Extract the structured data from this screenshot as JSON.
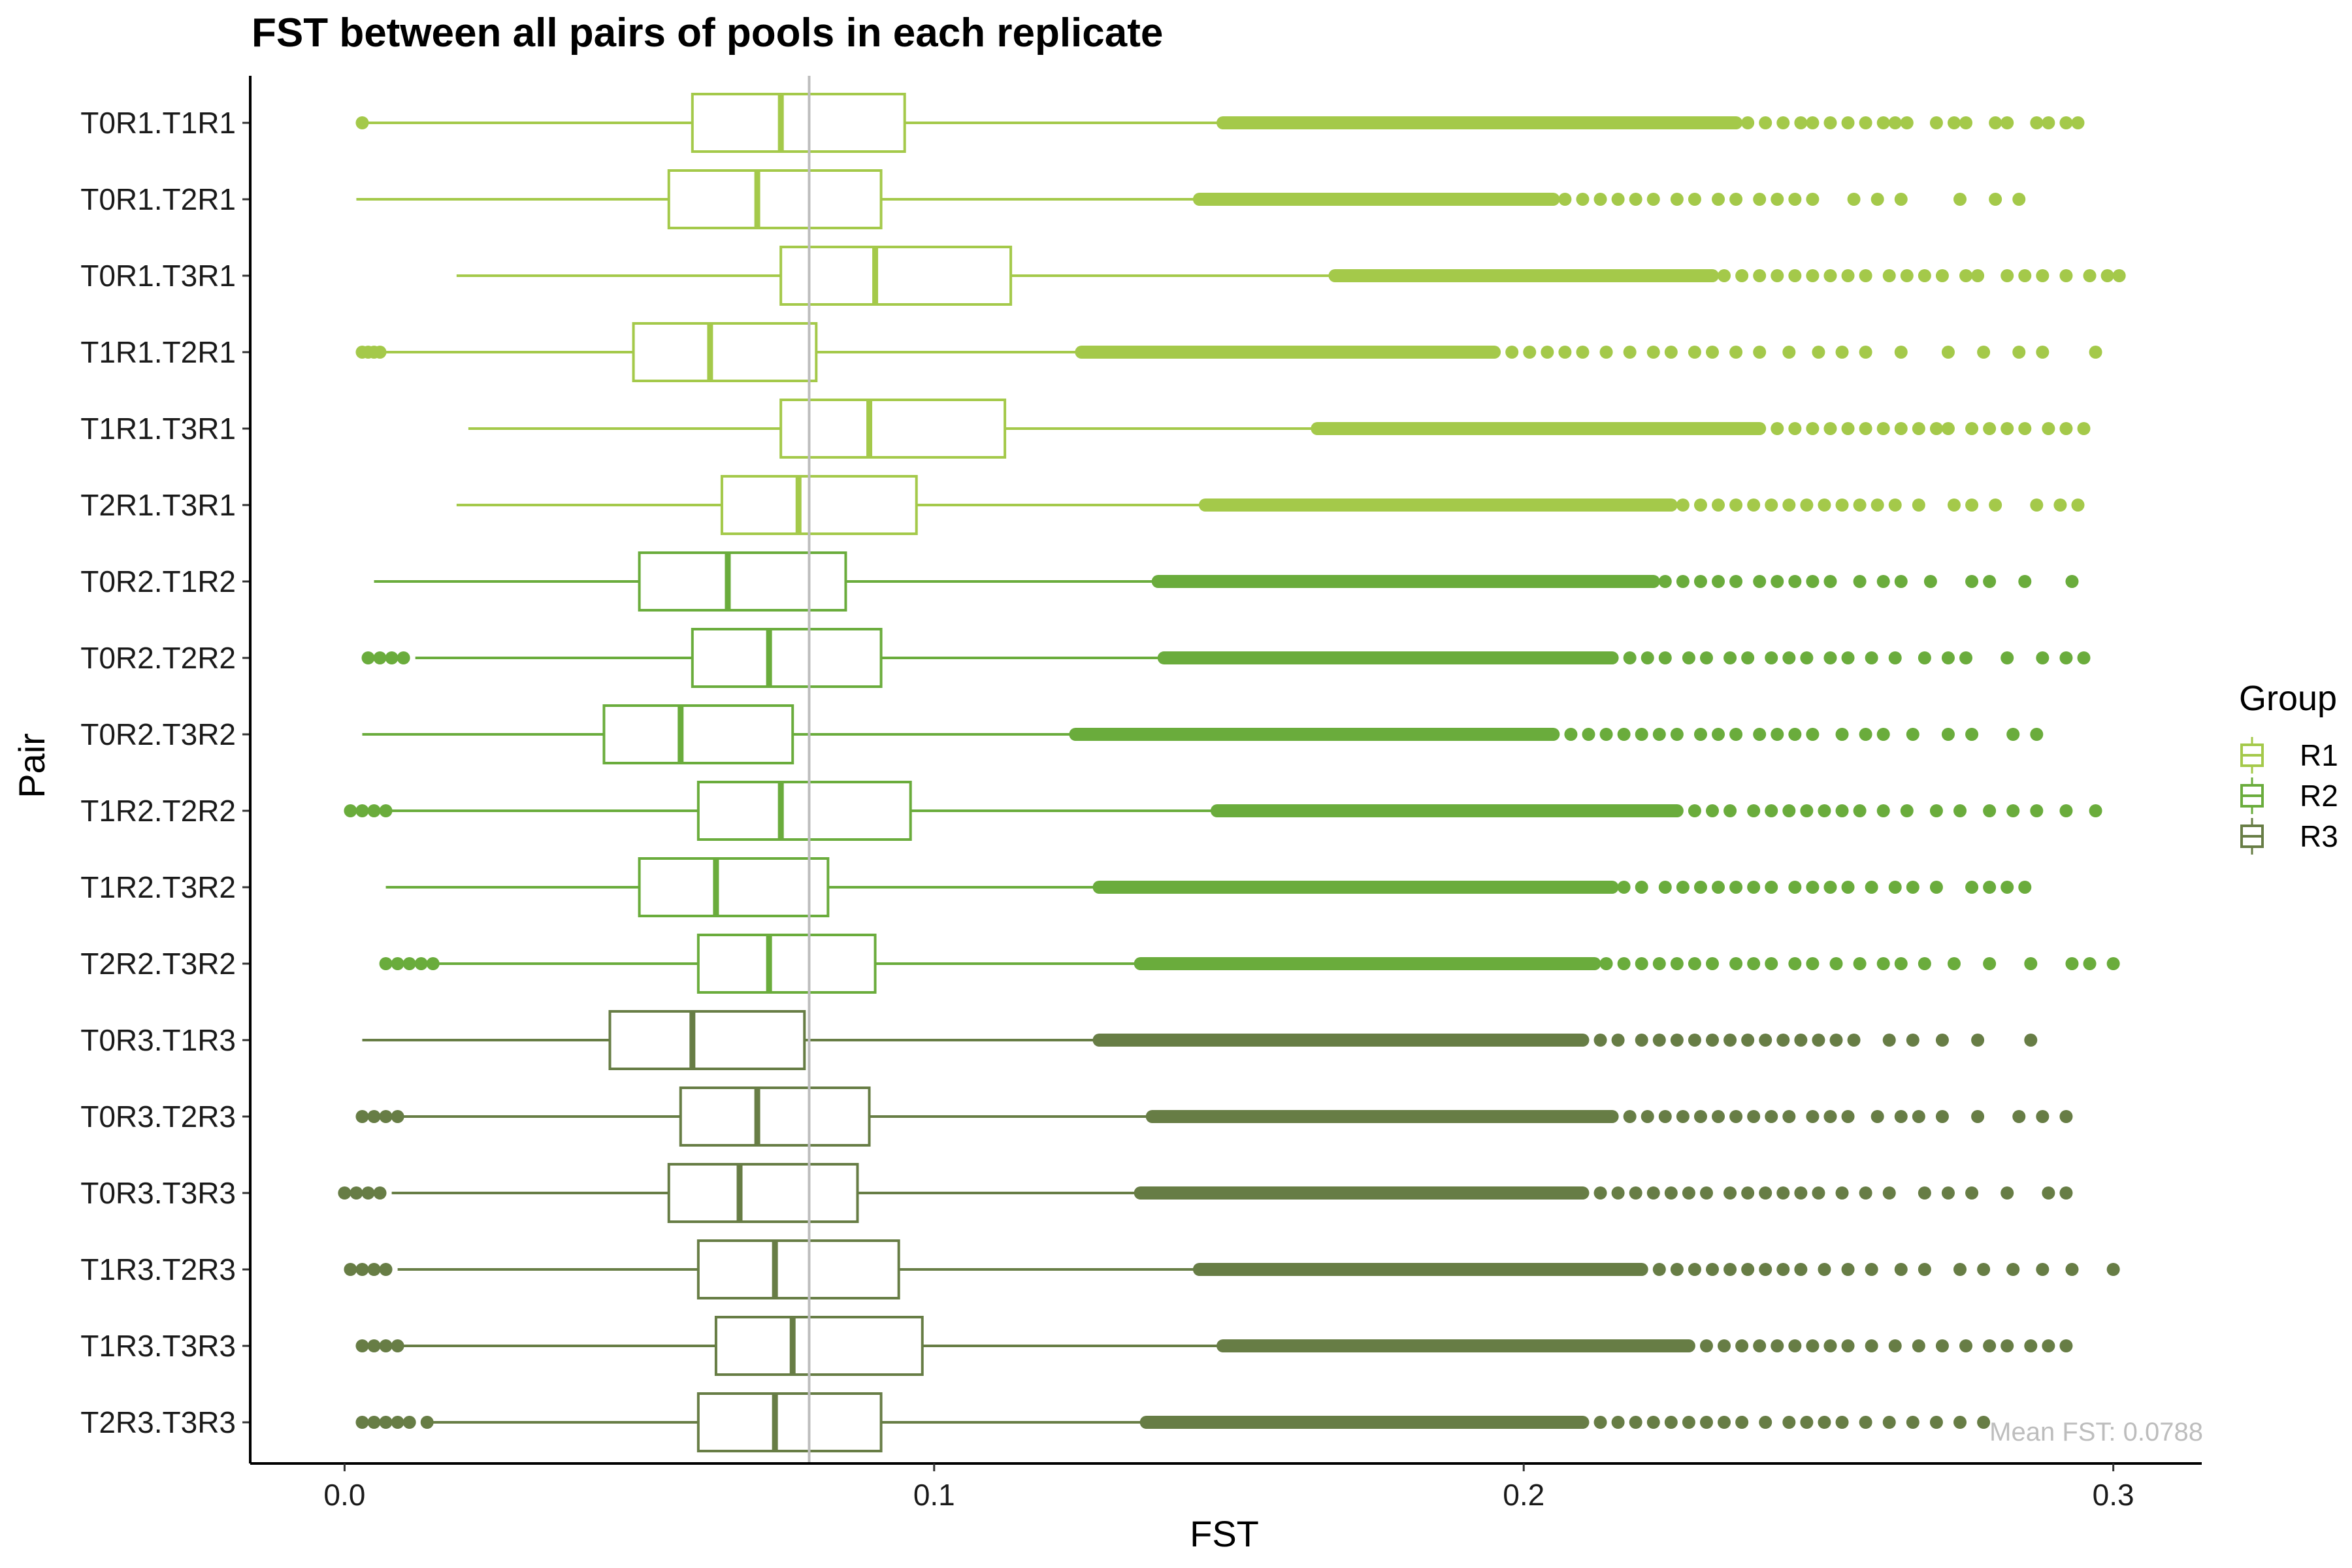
{
  "chart_data": {
    "type": "boxplot",
    "title": "FST between all pairs of pools in each replicate",
    "xlabel": "FST",
    "ylabel": "Pair",
    "xlim": [
      -0.016,
      0.315
    ],
    "xticks": [
      0.0,
      0.1,
      0.2,
      0.3
    ],
    "xtick_labels": [
      "0.0",
      "0.1",
      "0.2",
      "0.3"
    ],
    "grid": false,
    "legend": {
      "title": "Group",
      "position": "right",
      "entries": [
        {
          "label": "R1",
          "color": "#a4c94a"
        },
        {
          "label": "R2",
          "color": "#6aac3c"
        },
        {
          "label": "R3",
          "color": "#677d45"
        }
      ]
    },
    "reference_line": {
      "value": 0.0788,
      "color": "#bdbdbd",
      "label": "Mean FST: 0.0788"
    },
    "categories": [
      "T0R1.T1R1",
      "T0R1.T2R1",
      "T0R1.T3R1",
      "T1R1.T2R1",
      "T1R1.T3R1",
      "T2R1.T3R1",
      "T0R2.T1R2",
      "T0R2.T2R2",
      "T0R2.T3R2",
      "T1R2.T2R2",
      "T1R2.T3R2",
      "T2R2.T3R2",
      "T0R3.T1R3",
      "T0R3.T2R3",
      "T0R3.T3R3",
      "T1R3.T2R3",
      "T1R3.T3R3",
      "T2R3.T3R3"
    ],
    "series": [
      {
        "pair": "T0R1.T1R1",
        "group": "R1",
        "whisker_low": 0.004,
        "q1": 0.059,
        "median": 0.074,
        "q3": 0.095,
        "whisker_high": 0.149,
        "low_outliers": [
          0.003
        ],
        "outlier_dense_end": 0.236,
        "outliers": [
          0.238,
          0.241,
          0.244,
          0.247,
          0.249,
          0.252,
          0.255,
          0.258,
          0.261,
          0.263,
          0.265,
          0.27,
          0.273,
          0.275,
          0.28,
          0.282,
          0.287,
          0.289,
          0.292,
          0.294
        ]
      },
      {
        "pair": "T0R1.T2R1",
        "group": "R1",
        "whisker_low": 0.002,
        "q1": 0.055,
        "median": 0.07,
        "q3": 0.091,
        "whisker_high": 0.145,
        "low_outliers": [],
        "outlier_dense_end": 0.205,
        "outliers": [
          0.207,
          0.21,
          0.213,
          0.216,
          0.219,
          0.222,
          0.226,
          0.229,
          0.233,
          0.236,
          0.24,
          0.243,
          0.246,
          0.249,
          0.256,
          0.26,
          0.264,
          0.274,
          0.28,
          0.284
        ]
      },
      {
        "pair": "T0R1.T3R1",
        "group": "R1",
        "whisker_low": 0.019,
        "q1": 0.074,
        "median": 0.09,
        "q3": 0.113,
        "whisker_high": 0.168,
        "low_outliers": [],
        "outlier_dense_end": 0.232,
        "outliers": [
          0.234,
          0.237,
          0.24,
          0.243,
          0.246,
          0.249,
          0.252,
          0.255,
          0.258,
          0.262,
          0.265,
          0.268,
          0.271,
          0.275,
          0.277,
          0.282,
          0.285,
          0.288,
          0.292,
          0.296,
          0.299,
          0.301
        ]
      },
      {
        "pair": "T1R1.T2R1",
        "group": "R1",
        "whisker_low": 0.007,
        "q1": 0.049,
        "median": 0.062,
        "q3": 0.08,
        "whisker_high": 0.125,
        "low_outliers": [
          0.003,
          0.004,
          0.005,
          0.006
        ],
        "outlier_dense_end": 0.195,
        "outliers": [
          0.198,
          0.201,
          0.204,
          0.207,
          0.21,
          0.214,
          0.218,
          0.222,
          0.225,
          0.229,
          0.232,
          0.236,
          0.24,
          0.245,
          0.25,
          0.254,
          0.258,
          0.264,
          0.272,
          0.278,
          0.284,
          0.288,
          0.297
        ]
      },
      {
        "pair": "T1R1.T3R1",
        "group": "R1",
        "whisker_low": 0.021,
        "q1": 0.074,
        "median": 0.089,
        "q3": 0.112,
        "whisker_high": 0.165,
        "low_outliers": [],
        "outlier_dense_end": 0.24,
        "outliers": [
          0.243,
          0.246,
          0.249,
          0.252,
          0.255,
          0.258,
          0.261,
          0.264,
          0.267,
          0.27,
          0.272,
          0.276,
          0.279,
          0.282,
          0.285,
          0.289,
          0.292,
          0.295
        ]
      },
      {
        "pair": "T2R1.T3R1",
        "group": "R1",
        "whisker_low": 0.019,
        "q1": 0.064,
        "median": 0.077,
        "q3": 0.097,
        "whisker_high": 0.146,
        "low_outliers": [],
        "outlier_dense_end": 0.225,
        "outliers": [
          0.227,
          0.23,
          0.233,
          0.236,
          0.239,
          0.242,
          0.245,
          0.248,
          0.251,
          0.254,
          0.257,
          0.26,
          0.263,
          0.267,
          0.273,
          0.276,
          0.28,
          0.287,
          0.291,
          0.294
        ]
      },
      {
        "pair": "T0R2.T1R2",
        "group": "R2",
        "whisker_low": 0.005,
        "q1": 0.05,
        "median": 0.065,
        "q3": 0.085,
        "whisker_high": 0.138,
        "low_outliers": [],
        "outlier_dense_end": 0.222,
        "outliers": [
          0.224,
          0.227,
          0.23,
          0.233,
          0.236,
          0.24,
          0.243,
          0.246,
          0.249,
          0.252,
          0.257,
          0.261,
          0.264,
          0.269,
          0.276,
          0.279,
          0.285,
          0.293
        ]
      },
      {
        "pair": "T0R2.T2R2",
        "group": "R2",
        "whisker_low": 0.012,
        "q1": 0.059,
        "median": 0.072,
        "q3": 0.091,
        "whisker_high": 0.139,
        "low_outliers": [
          0.004,
          0.006,
          0.008,
          0.01
        ],
        "outlier_dense_end": 0.215,
        "outliers": [
          0.218,
          0.221,
          0.224,
          0.228,
          0.231,
          0.235,
          0.238,
          0.242,
          0.245,
          0.248,
          0.252,
          0.255,
          0.259,
          0.263,
          0.268,
          0.272,
          0.275,
          0.282,
          0.288,
          0.292,
          0.295
        ]
      },
      {
        "pair": "T0R2.T3R2",
        "group": "R2",
        "whisker_low": 0.003,
        "q1": 0.044,
        "median": 0.057,
        "q3": 0.076,
        "whisker_high": 0.124,
        "low_outliers": [],
        "outlier_dense_end": 0.205,
        "outliers": [
          0.208,
          0.211,
          0.214,
          0.217,
          0.22,
          0.223,
          0.226,
          0.23,
          0.233,
          0.236,
          0.24,
          0.243,
          0.246,
          0.249,
          0.254,
          0.258,
          0.261,
          0.266,
          0.272,
          0.276,
          0.283,
          0.287
        ]
      },
      {
        "pair": "T1R2.T2R2",
        "group": "R2",
        "whisker_low": 0.008,
        "q1": 0.06,
        "median": 0.074,
        "q3": 0.096,
        "whisker_high": 0.148,
        "low_outliers": [
          0.001,
          0.003,
          0.005,
          0.007
        ],
        "outlier_dense_end": 0.226,
        "outliers": [
          0.229,
          0.232,
          0.235,
          0.239,
          0.242,
          0.245,
          0.248,
          0.251,
          0.254,
          0.257,
          0.261,
          0.265,
          0.27,
          0.274,
          0.279,
          0.283,
          0.287,
          0.292,
          0.297
        ]
      },
      {
        "pair": "T1R2.T3R2",
        "group": "R2",
        "whisker_low": 0.007,
        "q1": 0.05,
        "median": 0.063,
        "q3": 0.082,
        "whisker_high": 0.128,
        "low_outliers": [],
        "outlier_dense_end": 0.215,
        "outliers": [
          0.217,
          0.22,
          0.224,
          0.227,
          0.23,
          0.233,
          0.236,
          0.239,
          0.242,
          0.246,
          0.249,
          0.252,
          0.255,
          0.259,
          0.263,
          0.266,
          0.27,
          0.276,
          0.279,
          0.282,
          0.285
        ]
      },
      {
        "pair": "T2R2.T3R2",
        "group": "R2",
        "whisker_low": 0.016,
        "q1": 0.06,
        "median": 0.072,
        "q3": 0.09,
        "whisker_high": 0.135,
        "low_outliers": [
          0.007,
          0.009,
          0.011,
          0.013,
          0.015
        ],
        "outlier_dense_end": 0.212,
        "outliers": [
          0.214,
          0.217,
          0.22,
          0.223,
          0.226,
          0.229,
          0.232,
          0.236,
          0.239,
          0.242,
          0.246,
          0.249,
          0.253,
          0.257,
          0.261,
          0.264,
          0.268,
          0.273,
          0.279,
          0.286,
          0.293,
          0.296,
          0.3
        ]
      },
      {
        "pair": "T0R3.T1R3",
        "group": "R3",
        "whisker_low": 0.003,
        "q1": 0.045,
        "median": 0.059,
        "q3": 0.078,
        "whisker_high": 0.128,
        "low_outliers": [],
        "outlier_dense_end": 0.21,
        "outliers": [
          0.213,
          0.216,
          0.22,
          0.223,
          0.226,
          0.229,
          0.232,
          0.235,
          0.238,
          0.241,
          0.244,
          0.247,
          0.25,
          0.253,
          0.256,
          0.262,
          0.266,
          0.271,
          0.277,
          0.286
        ]
      },
      {
        "pair": "T0R3.T2R3",
        "group": "R3",
        "whisker_low": 0.01,
        "q1": 0.057,
        "median": 0.07,
        "q3": 0.089,
        "whisker_high": 0.137,
        "low_outliers": [
          0.003,
          0.005,
          0.007,
          0.009
        ],
        "outlier_dense_end": 0.215,
        "outliers": [
          0.218,
          0.221,
          0.224,
          0.227,
          0.23,
          0.233,
          0.236,
          0.239,
          0.242,
          0.245,
          0.249,
          0.252,
          0.255,
          0.26,
          0.264,
          0.267,
          0.271,
          0.277,
          0.284,
          0.288,
          0.292
        ]
      },
      {
        "pair": "T0R3.T3R3",
        "group": "R3",
        "whisker_low": 0.008,
        "q1": 0.055,
        "median": 0.067,
        "q3": 0.087,
        "whisker_high": 0.135,
        "low_outliers": [
          0.0,
          0.002,
          0.004,
          0.006
        ],
        "outlier_dense_end": 0.21,
        "outliers": [
          0.213,
          0.216,
          0.219,
          0.222,
          0.225,
          0.228,
          0.231,
          0.235,
          0.238,
          0.241,
          0.244,
          0.247,
          0.25,
          0.254,
          0.258,
          0.262,
          0.268,
          0.272,
          0.276,
          0.282,
          0.289,
          0.292
        ]
      },
      {
        "pair": "T1R3.T2R3",
        "group": "R3",
        "whisker_low": 0.009,
        "q1": 0.06,
        "median": 0.073,
        "q3": 0.094,
        "whisker_high": 0.145,
        "low_outliers": [
          0.001,
          0.003,
          0.005,
          0.007
        ],
        "outlier_dense_end": 0.22,
        "outliers": [
          0.223,
          0.226,
          0.229,
          0.232,
          0.235,
          0.238,
          0.241,
          0.244,
          0.247,
          0.251,
          0.255,
          0.259,
          0.264,
          0.268,
          0.274,
          0.278,
          0.283,
          0.288,
          0.293,
          0.3
        ]
      },
      {
        "pair": "T1R3.T3R3",
        "group": "R3",
        "whisker_low": 0.01,
        "q1": 0.063,
        "median": 0.076,
        "q3": 0.098,
        "whisker_high": 0.149,
        "low_outliers": [
          0.003,
          0.005,
          0.007,
          0.009
        ],
        "outlier_dense_end": 0.228,
        "outliers": [
          0.231,
          0.234,
          0.237,
          0.24,
          0.243,
          0.246,
          0.249,
          0.252,
          0.255,
          0.259,
          0.263,
          0.267,
          0.271,
          0.275,
          0.279,
          0.282,
          0.286,
          0.289,
          0.292
        ]
      },
      {
        "pair": "T2R3.T3R3",
        "group": "R3",
        "whisker_low": 0.015,
        "q1": 0.06,
        "median": 0.073,
        "q3": 0.091,
        "whisker_high": 0.136,
        "low_outliers": [
          0.003,
          0.005,
          0.007,
          0.009,
          0.011,
          0.014
        ],
        "outlier_dense_end": 0.21,
        "outliers": [
          0.213,
          0.216,
          0.219,
          0.222,
          0.225,
          0.228,
          0.231,
          0.234,
          0.237,
          0.241,
          0.245,
          0.248,
          0.251,
          0.254,
          0.258,
          0.262,
          0.266,
          0.27,
          0.274,
          0.278
        ]
      }
    ]
  }
}
